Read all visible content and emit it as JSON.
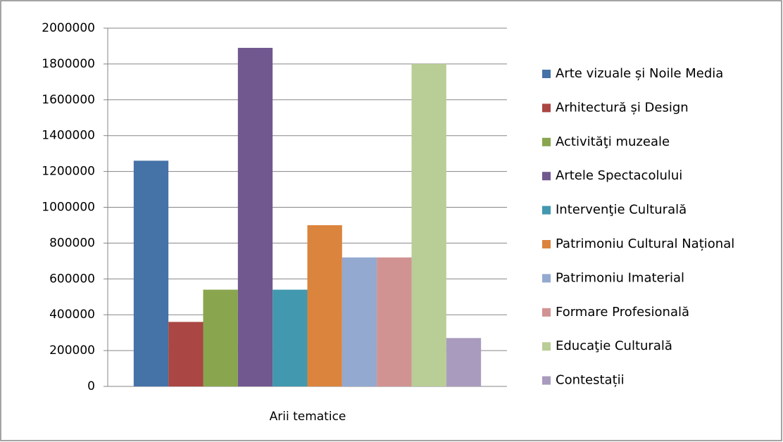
{
  "chart_data": {
    "type": "bar",
    "xlabel": "Arii tematice",
    "categories": [
      "Arii tematice"
    ],
    "series": [
      {
        "name": "Arte vizuale și Noile Media",
        "color": "#4572a7",
        "values": [
          1260000
        ]
      },
      {
        "name": "Arhitectură și Design",
        "color": "#aa4643",
        "values": [
          360000
        ]
      },
      {
        "name": "Activităţi muzeale",
        "color": "#89a54e",
        "values": [
          540000
        ]
      },
      {
        "name": "Artele Spectacolului",
        "color": "#71588f",
        "values": [
          1890000
        ]
      },
      {
        "name": "Intervenţie Culturală",
        "color": "#4198af",
        "values": [
          540000
        ]
      },
      {
        "name": "Patrimoniu Cultural Național",
        "color": "#db843d",
        "values": [
          900000
        ]
      },
      {
        "name": "Patrimoniu Imaterial",
        "color": "#93a9cf",
        "values": [
          720000
        ]
      },
      {
        "name": "Formare Profesională",
        "color": "#d19392",
        "values": [
          720000
        ]
      },
      {
        "name": "Educaţie Culturală",
        "color": "#b9cd96",
        "values": [
          1800000
        ]
      },
      {
        "name": "Contestații",
        "color": "#a99bbd",
        "values": [
          270000
        ]
      }
    ],
    "ylim": [
      0,
      2000000
    ],
    "yticks": [
      0,
      200000,
      400000,
      600000,
      800000,
      1000000,
      1200000,
      1400000,
      1600000,
      1800000,
      2000000
    ],
    "grid": true,
    "legend": "right"
  }
}
